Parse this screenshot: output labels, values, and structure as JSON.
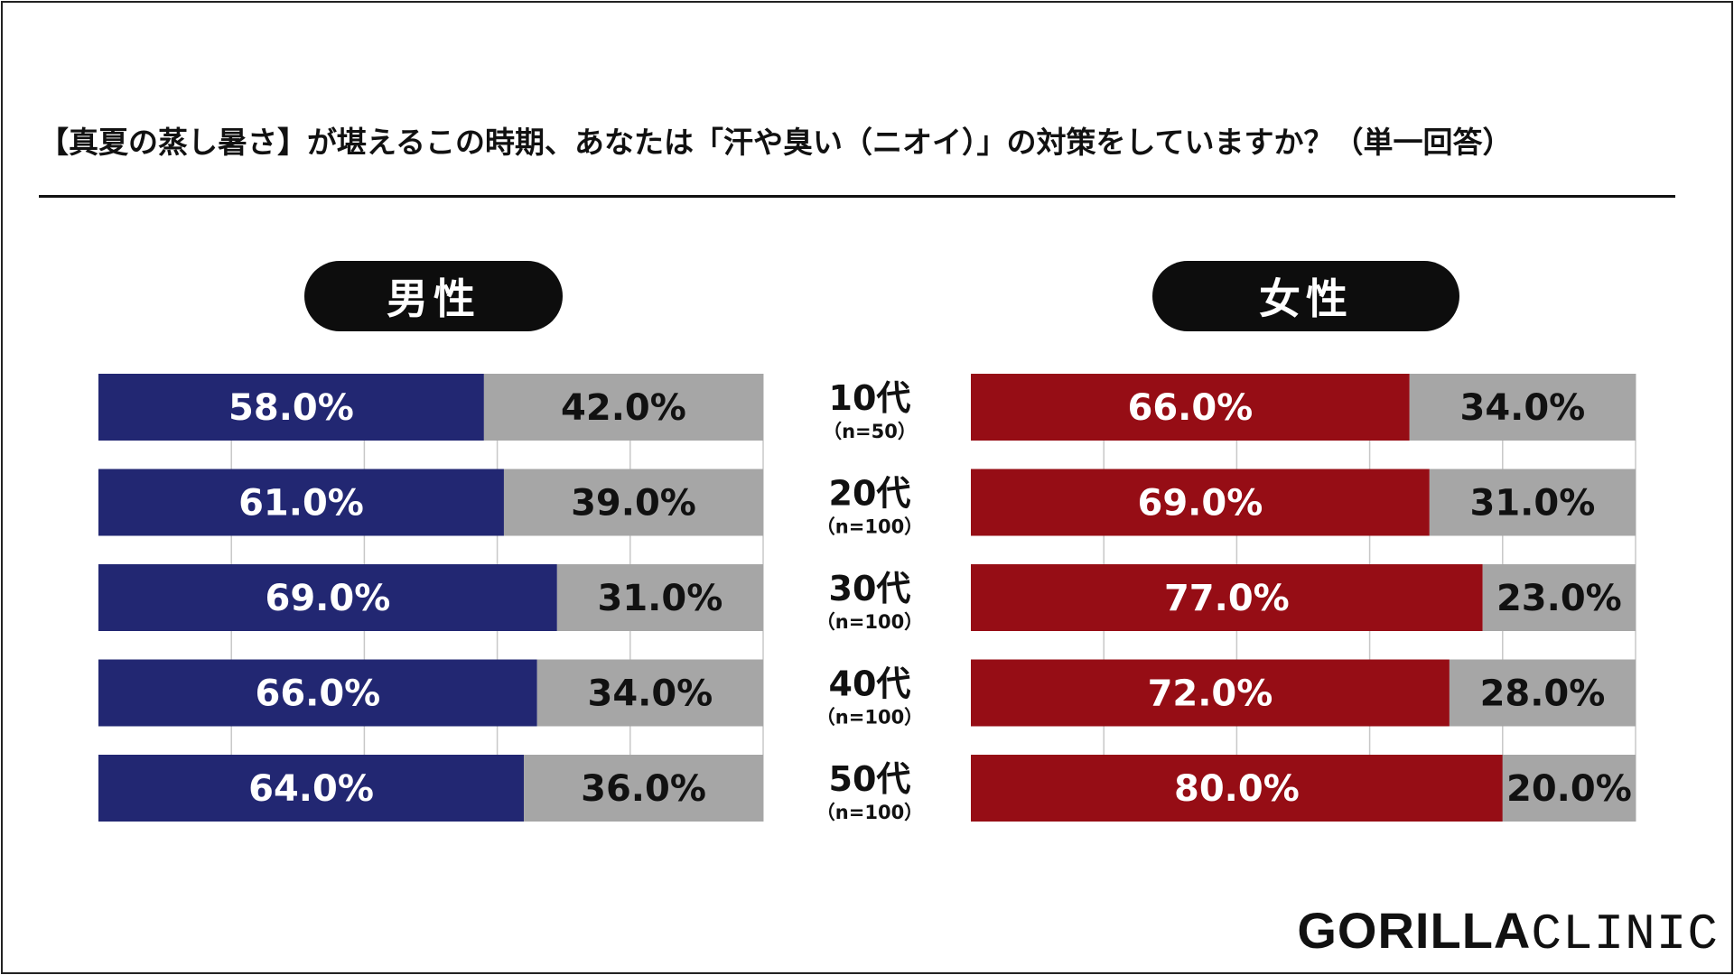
{
  "title": "【真夏の蒸し暑さ】が堪えるこの時期、あなたは「汗や臭い（ニオイ）」の対策をしていますか？（単一回答）",
  "logo": {
    "part1": "GORILLA",
    "part2": "CLINIC"
  },
  "colors": {
    "male": "#222772",
    "female": "#960d15",
    "rest": "#a6a6a6",
    "grid": "#c8c8c8"
  },
  "chart_data": {
    "type": "bar",
    "orientation": "horizontal-stacked-100",
    "categories": [
      "10代",
      "20代",
      "30代",
      "40代",
      "50代"
    ],
    "sample_sizes": [
      "（n=50）",
      "（n=100）",
      "（n=100）",
      "（n=100）",
      "（n=100）"
    ],
    "panels": [
      {
        "label": "男性",
        "series": [
          {
            "values": [
              58.0,
              61.0,
              69.0,
              66.0,
              64.0
            ]
          },
          {
            "values": [
              42.0,
              39.0,
              31.0,
              34.0,
              36.0
            ]
          }
        ]
      },
      {
        "label": "女性",
        "series": [
          {
            "values": [
              66.0,
              69.0,
              77.0,
              72.0,
              80.0
            ]
          },
          {
            "values": [
              34.0,
              31.0,
              23.0,
              28.0,
              20.0
            ]
          }
        ]
      }
    ],
    "value_suffix": "%",
    "xlim": [
      0,
      100
    ],
    "grid": true
  }
}
